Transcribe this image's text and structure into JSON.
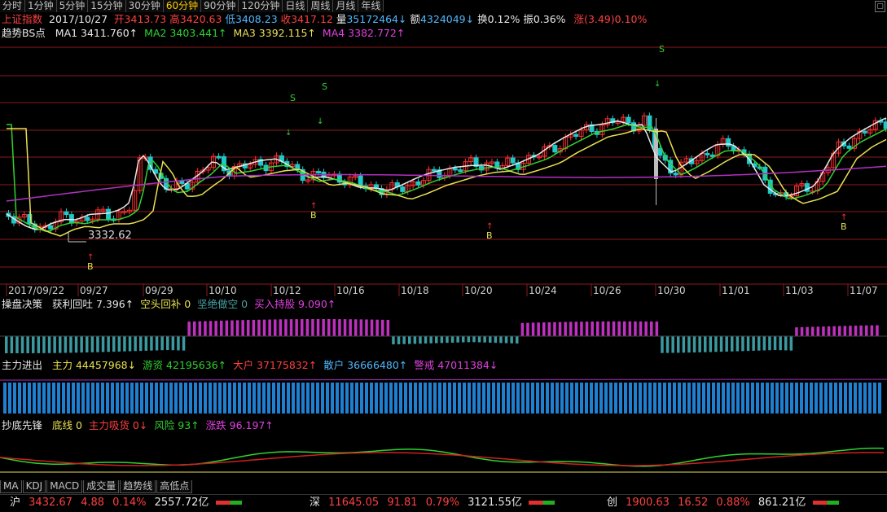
{
  "toolbar": {
    "tabs": [
      "分时",
      "1分钟",
      "5分钟",
      "15分钟",
      "30分钟",
      "60分钟",
      "90分钟",
      "120分钟",
      "日线",
      "周线",
      "月线",
      "年线"
    ],
    "active_index": 5,
    "corner_icon": "square-icon"
  },
  "quote": {
    "name": "上证指数",
    "date": "2017/10/27",
    "open_label": "开",
    "open": "3413.73",
    "high_label": "高",
    "high": "3420.63",
    "low_label": "低",
    "low": "3408.23",
    "close_label": "收",
    "close": "3417.12",
    "volume_label": "量",
    "volume": "35172464↓",
    "amount_label": "额",
    "amount": "4324049↓",
    "turnover_label": "换",
    "turnover": "0.12%",
    "amplitude_label": "振",
    "amplitude": "0.36%",
    "change_label": "涨",
    "change": "(3.49)0.10%"
  },
  "ma_row": {
    "title": "趋势BS点",
    "ma1": "MA1 3411.760↑",
    "ma2": "MA2 3403.441↑",
    "ma3": "MA3 3392.115↑",
    "ma4": "MA4 3382.772↑"
  },
  "main_chart": {
    "low_label": "3332.62",
    "signal_s": "S",
    "signal_b": "B",
    "dates": [
      "2017/09/22",
      "09/27",
      "09/29",
      "10/10",
      "10/12",
      "10/16",
      "10/18",
      "10/20",
      "10/24",
      "10/26",
      "10/30",
      "11/01",
      "11/03",
      "11/07"
    ]
  },
  "panel1": {
    "title": "操盘决策",
    "v1": "获利回吐 7.396↑",
    "v2": "空头回补 0",
    "v3": "坚绝做空 0",
    "v4": "买入持股 9.090↑"
  },
  "panel2": {
    "title": "主力进出",
    "v1": "主力 44457968↓",
    "v2": "游资 42195636↑",
    "v3": "大户 37175832↑",
    "v4": "散户 36666480↑",
    "v5": "警戒 47011384↓"
  },
  "panel3": {
    "title": "抄底先锋",
    "v1": "底线 0",
    "v2": "主力吸货 0↓",
    "v3": "风险 93↑",
    "v4": "涨跌 96.197↑"
  },
  "bottom_tabs": [
    "MA",
    "KDJ",
    "MACD",
    "成交量",
    "趋势线",
    "高低点"
  ],
  "status": {
    "sh_label": "沪",
    "sh_price": "3432.67",
    "sh_chg": "4.88",
    "sh_pct": "0.14%",
    "sh_amt": "2557.72亿",
    "sz_label": "深",
    "sz_price": "11645.05",
    "sz_chg": "91.81",
    "sz_pct": "0.79%",
    "sz_amt": "3121.55亿",
    "cy_label": "创",
    "cy_price": "1900.63",
    "cy_chg": "16.52",
    "cy_pct": "0.88%",
    "cy_amt": "861.21亿"
  },
  "colors": {
    "up": "#ff3030",
    "down": "#20c8c8",
    "ma1": "#e8e8e8",
    "ma2": "#2fd22f",
    "ma3": "#e8e050",
    "ma4": "#b030c0",
    "grid": "#8a1a1a"
  }
}
